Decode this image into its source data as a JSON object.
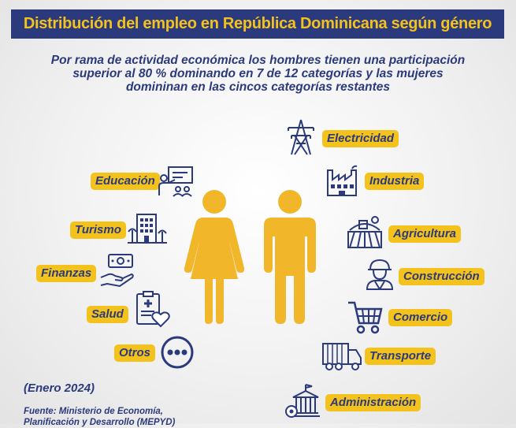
{
  "title": "Distribución del empleo en República Dominicana según género",
  "subtitle": "Por rama de actividad económica los hombres tienen una participación superior al 80 % dominando en 7 de 12 categorías y las mujeres domininan en las cincos categorías restantes",
  "women_categories": [
    {
      "label": "Educación",
      "icon": "teacher-icon"
    },
    {
      "label": "Turismo",
      "icon": "hotel-icon"
    },
    {
      "label": "Finanzas",
      "icon": "money-hand-icon"
    },
    {
      "label": "Salud",
      "icon": "medical-record-icon"
    },
    {
      "label": "Otros",
      "icon": "more-dots-icon"
    }
  ],
  "men_categories": [
    {
      "label": "Electricidad",
      "icon": "power-tower-icon"
    },
    {
      "label": "Industria",
      "icon": "factory-icon"
    },
    {
      "label": "Agricultura",
      "icon": "farm-icon"
    },
    {
      "label": "Construcción",
      "icon": "worker-icon"
    },
    {
      "label": "Comercio",
      "icon": "shopping-cart-icon"
    },
    {
      "label": "Transporte",
      "icon": "truck-icon"
    },
    {
      "label": "Administración",
      "icon": "government-building-icon"
    }
  ],
  "date": "(Enero 2024)",
  "source": "Fuente: Ministerio de Economía, Planificación y Desarrollo (MEPYD)",
  "colors": {
    "navy": "#2b3a7d",
    "yellow": "#f4c21c",
    "figure": "#f2b62a"
  }
}
